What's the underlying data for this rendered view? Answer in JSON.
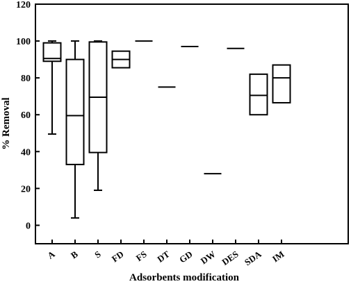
{
  "chart_data": {
    "type": "box",
    "title": "",
    "xlabel": "Adsorbents modification",
    "ylabel": "% Removal",
    "ylim": [
      -10,
      120
    ],
    "yticks": [
      0,
      20,
      40,
      60,
      80,
      100,
      120
    ],
    "grid": false,
    "categories": [
      "A",
      "B",
      "S",
      "FD",
      "FS",
      "DT",
      "GD",
      "DW",
      "DES",
      "SDA",
      "IM"
    ],
    "boxes": [
      {
        "label": "A",
        "min": 49.5,
        "q1": 89.0,
        "median": 90.5,
        "q3": 99.0,
        "max": 100.0
      },
      {
        "label": "B",
        "min": 4.0,
        "q1": 33.0,
        "median": 59.5,
        "q3": 90.0,
        "max": 100.0
      },
      {
        "label": "S",
        "min": 19.0,
        "q1": 39.5,
        "median": 69.5,
        "q3": 99.5,
        "max": 100.0
      },
      {
        "label": "FD",
        "min": 85.5,
        "q1": 85.5,
        "median": 90.0,
        "q3": 94.5,
        "max": 94.5
      },
      {
        "label": "FS",
        "min": 100.0,
        "q1": 100.0,
        "median": 100.0,
        "q3": 100.0,
        "max": 100.0
      },
      {
        "label": "DT",
        "min": 75.0,
        "q1": 75.0,
        "median": 75.0,
        "q3": 75.0,
        "max": 75.0
      },
      {
        "label": "GD",
        "min": 97.0,
        "q1": 97.0,
        "median": 97.0,
        "q3": 97.0,
        "max": 97.0
      },
      {
        "label": "DW",
        "min": 28.0,
        "q1": 28.0,
        "median": 28.0,
        "q3": 28.0,
        "max": 28.0
      },
      {
        "label": "DES",
        "min": 96.0,
        "q1": 96.0,
        "median": 96.0,
        "q3": 96.0,
        "max": 96.0
      },
      {
        "label": "SDA",
        "min": 60.0,
        "q1": 60.0,
        "median": 70.5,
        "q3": 82.0,
        "max": 82.0
      },
      {
        "label": "IM",
        "min": 66.5,
        "q1": 66.5,
        "median": 80.0,
        "q3": 87.0,
        "max": 87.0
      }
    ]
  }
}
